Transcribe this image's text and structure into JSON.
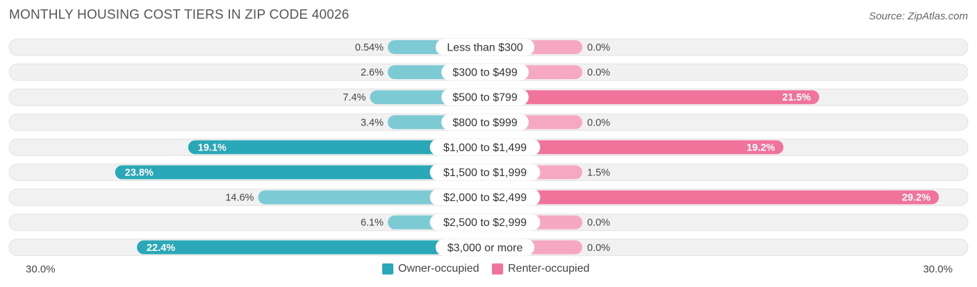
{
  "title": "MONTHLY HOUSING COST TIERS IN ZIP CODE 40026",
  "source": "Source: ZipAtlas.com",
  "axis": {
    "left_label": "30.0%",
    "right_label": "30.0%"
  },
  "legend": {
    "owner_label": "Owner-occupied",
    "renter_label": "Renter-occupied"
  },
  "colors": {
    "owner_strong": "#2aa8b8",
    "owner_light": "#7ccad4",
    "renter_strong": "#f0739c",
    "renter_light": "#f6a8c2",
    "track": "#efefef"
  },
  "chart_data": {
    "type": "bar",
    "orientation": "horizontal-diverging",
    "title": "MONTHLY HOUSING COST TIERS IN ZIP CODE 40026",
    "xlim": [
      -30,
      30
    ],
    "categories": [
      "Less than $300",
      "$300 to $499",
      "$500 to $799",
      "$800 to $999",
      "$1,000 to $1,499",
      "$1,500 to $1,999",
      "$2,000 to $2,499",
      "$2,500 to $2,999",
      "$3,000 or more"
    ],
    "series": [
      {
        "name": "Owner-occupied",
        "values": [
          0.54,
          2.6,
          7.4,
          3.4,
          19.1,
          23.8,
          14.6,
          6.1,
          22.4
        ],
        "labels": [
          "0.54%",
          "2.6%",
          "7.4%",
          "3.4%",
          "19.1%",
          "23.8%",
          "14.6%",
          "6.1%",
          "22.4%"
        ]
      },
      {
        "name": "Renter-occupied",
        "values": [
          0.0,
          0.0,
          21.5,
          0.0,
          19.2,
          1.5,
          29.2,
          0.0,
          0.0
        ],
        "labels": [
          "0.0%",
          "0.0%",
          "21.5%",
          "0.0%",
          "19.2%",
          "1.5%",
          "29.2%",
          "0.0%",
          "0.0%"
        ]
      }
    ],
    "legend_position": "bottom-center"
  }
}
